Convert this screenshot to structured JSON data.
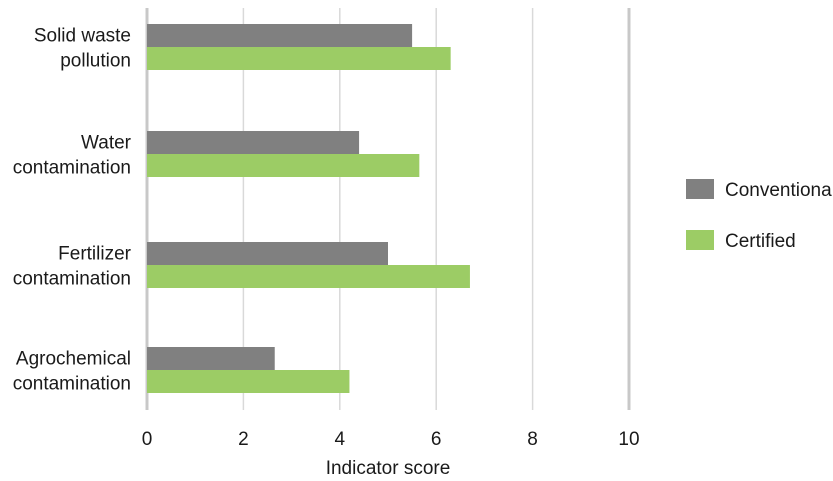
{
  "chart_data": {
    "type": "bar",
    "orientation": "horizontal",
    "categories": [
      [
        "Solid waste",
        "pollution"
      ],
      [
        "Water",
        "contamination"
      ],
      [
        "Fertilizer",
        "contamination"
      ],
      [
        "Agrochemical",
        "contamination"
      ]
    ],
    "series": [
      {
        "name": "Conventional",
        "color": "#808080",
        "values": [
          5.5,
          4.4,
          5.0,
          2.65
        ]
      },
      {
        "name": "Certified",
        "color": "#9ccc65",
        "values": [
          6.3,
          5.65,
          6.7,
          4.2
        ]
      }
    ],
    "xlabel": "Indicator score",
    "ylabel": "",
    "xlim": [
      0,
      10
    ],
    "xticks": [
      "0",
      "2",
      "4",
      "6",
      "8",
      "10"
    ],
    "grid": true,
    "legend_position": "right"
  }
}
